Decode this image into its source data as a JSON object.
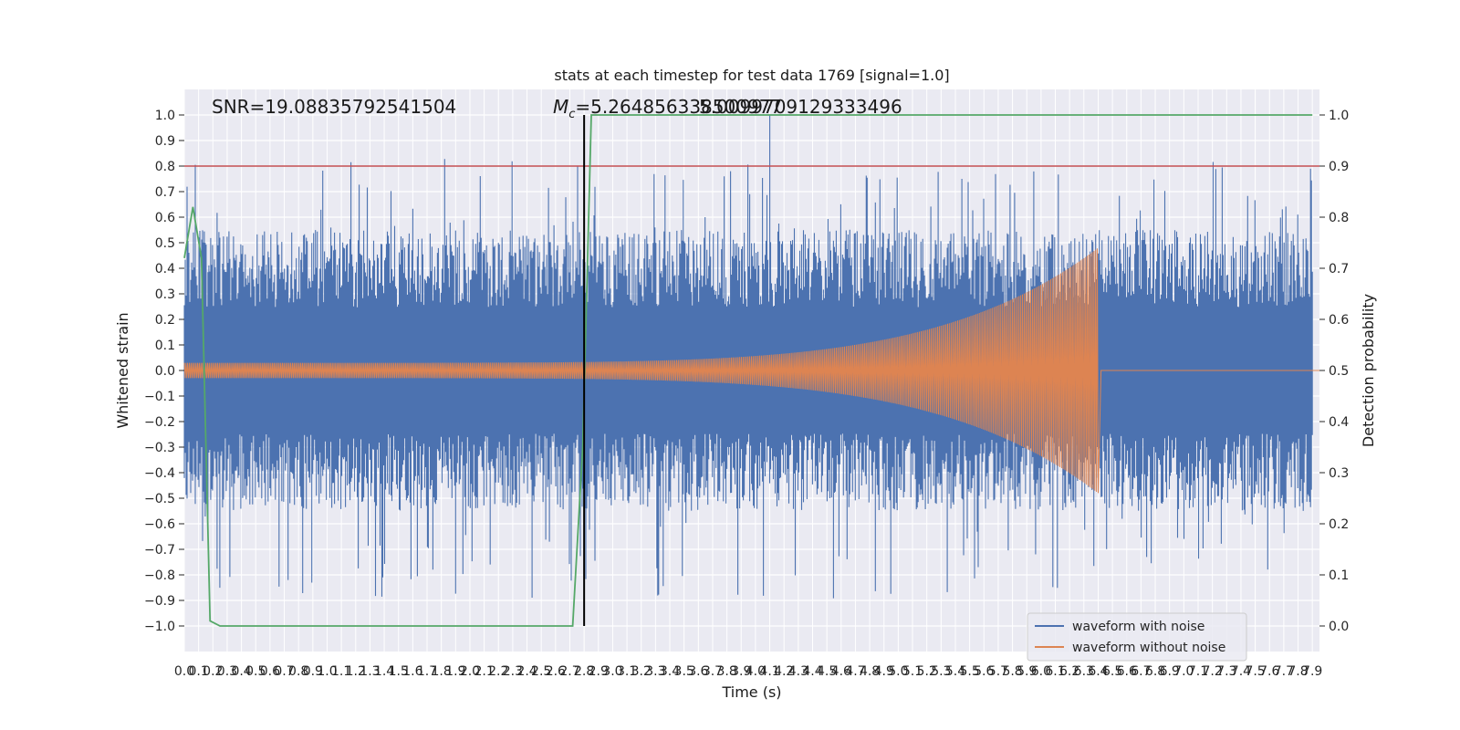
{
  "chart_data": {
    "type": "line",
    "title": "stats at each timestep for test data 1769 [signal=1.0]",
    "xlabel": "Time (s)",
    "ylabel": "Whitened strain",
    "y2label": "Detection probability",
    "xlim": [
      0.0,
      7.95
    ],
    "ylim": [
      -1.1,
      1.1
    ],
    "y2lim": [
      -0.05,
      1.05
    ],
    "x_ticks": [
      "0.0",
      "0.1",
      "0.2",
      "0.3",
      "0.4",
      "0.5",
      "0.6",
      "0.7",
      "0.8",
      "0.9",
      "1.0",
      "1.1",
      "1.2",
      "1.3",
      "1.4",
      "1.5",
      "1.6",
      "1.7",
      "1.8",
      "1.9",
      "2.0",
      "2.1",
      "2.2",
      "2.3",
      "2.4",
      "2.5",
      "2.6",
      "2.7",
      "2.8",
      "2.9",
      "3.0",
      "3.1",
      "3.2",
      "3.3",
      "3.4",
      "3.5",
      "3.6",
      "3.7",
      "3.8",
      "3.9",
      "4.0",
      "4.1",
      "4.2",
      "4.3",
      "4.4",
      "4.5",
      "4.6",
      "4.7",
      "4.8",
      "4.9",
      "5.0",
      "5.1",
      "5.2",
      "5.3",
      "5.4",
      "5.5",
      "5.6",
      "5.7",
      "5.8",
      "5.9",
      "6.0",
      "6.1",
      "6.2",
      "6.3",
      "6.4",
      "6.5",
      "6.6",
      "6.7",
      "6.8",
      "6.9",
      "7.0",
      "7.1",
      "7.2",
      "7.3",
      "7.4",
      "7.5",
      "7.6",
      "7.7",
      "7.8",
      "7.9"
    ],
    "y_ticks": [
      "1.0",
      "0.9",
      "0.8",
      "0.7",
      "0.6",
      "0.5",
      "0.4",
      "0.3",
      "0.2",
      "0.1",
      "0.0",
      "−0.1",
      "−0.2",
      "−0.3",
      "−0.4",
      "−0.5",
      "−0.6",
      "−0.7",
      "−0.8",
      "−0.9",
      "−1.0"
    ],
    "y2_ticks": [
      "1.0",
      "0.9",
      "0.8",
      "0.7",
      "0.6",
      "0.5",
      "0.4",
      "0.3",
      "0.2",
      "0.1",
      "0.0"
    ],
    "annotations": {
      "snr": "SNR=19.08835792541504",
      "mc_symbol": "M",
      "mc_sub": "c",
      "mc_value": "=5.264856338500977",
      "mc_overlap": "5.0099709129333496"
    },
    "series": [
      {
        "name": "waveform with noise",
        "color": "#4c72b0",
        "envelope": 0.55,
        "spike_max": 1.0
      },
      {
        "name": "waveform without noise",
        "color": "#dd8452",
        "amp_start": 0.03,
        "amp_peak": 0.48,
        "merger_time": 6.4,
        "end_time": 6.42
      }
    ],
    "threshold": {
      "value": 0.9,
      "axis": "y2",
      "color": "#c44e52"
    },
    "detection_time": {
      "x": 2.8,
      "color": "#000000"
    },
    "detection_probability": {
      "color": "#55a868",
      "x": [
        0.0,
        0.06,
        0.12,
        0.18,
        0.25,
        2.72,
        2.79,
        2.85,
        7.9
      ],
      "y": [
        0.72,
        0.82,
        0.72,
        0.01,
        0.0,
        0.0,
        0.35,
        1.0,
        1.0
      ]
    },
    "legend": {
      "placement": "lower-right"
    },
    "grid": true,
    "background": "#eaeaf2"
  }
}
